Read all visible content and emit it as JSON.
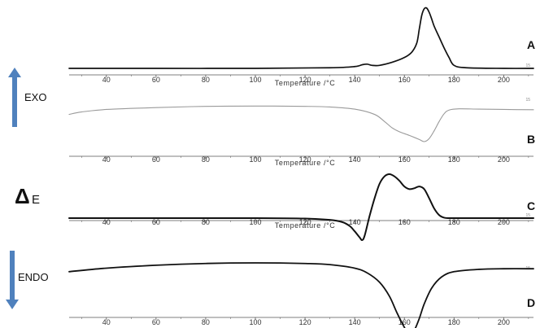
{
  "labels": {
    "exo": "EXO",
    "endo": "ENDO",
    "delta_symbol": "Δ",
    "delta_subscript": "E"
  },
  "colors": {
    "arrow": "#4f81bd",
    "curve_dark": "#111111",
    "curve_light": "#9a9a9a",
    "axis": "#555555"
  },
  "chart_data": [
    {
      "type": "line",
      "panel": "A",
      "xlabel": "Temperature /°C",
      "xlim": [
        25,
        212
      ],
      "x_ticks": [
        40,
        60,
        80,
        100,
        120,
        140,
        160,
        180,
        200
      ],
      "corner_mark": "15",
      "series": [
        {
          "x": [
            25,
            60,
            100,
            130,
            140,
            143,
            145,
            147,
            150,
            155,
            160,
            163,
            165,
            166,
            167,
            168,
            169,
            170,
            171,
            172,
            174,
            176,
            178,
            180,
            185,
            200,
            212
          ],
          "y": [
            0,
            0,
            0,
            0.01,
            0.03,
            0.06,
            0.07,
            0.05,
            0.05,
            0.1,
            0.18,
            0.27,
            0.42,
            0.65,
            0.88,
            0.99,
            1.0,
            0.93,
            0.82,
            0.7,
            0.52,
            0.34,
            0.18,
            0.05,
            0.01,
            0,
            0
          ]
        }
      ]
    },
    {
      "type": "line",
      "panel": "B",
      "xlabel": "Temperature /°C",
      "xlim": [
        25,
        212
      ],
      "x_ticks": [
        40,
        60,
        80,
        100,
        120,
        140,
        160,
        180,
        200
      ],
      "corner_mark": "15",
      "series": [
        {
          "x": [
            25,
            30,
            40,
            60,
            80,
            100,
            120,
            130,
            140,
            148,
            152,
            155,
            158,
            162,
            166,
            168,
            170,
            172,
            174,
            176,
            178,
            182,
            190,
            200,
            212
          ],
          "y": [
            -0.12,
            -0.04,
            0.04,
            0.1,
            0.14,
            0.15,
            0.14,
            0.12,
            0.05,
            -0.12,
            -0.35,
            -0.55,
            -0.68,
            -0.8,
            -0.93,
            -1.0,
            -0.9,
            -0.65,
            -0.35,
            -0.1,
            0.02,
            0.06,
            0.05,
            0.04,
            0.03
          ]
        }
      ]
    },
    {
      "type": "line",
      "panel": "C",
      "xlabel": "Temperature /°C",
      "xlim": [
        25,
        212
      ],
      "x_ticks": [
        40,
        60,
        80,
        100,
        120,
        140,
        160,
        180,
        200
      ],
      "corner_mark": "15",
      "series": [
        {
          "x": [
            25,
            60,
            100,
            120,
            130,
            135,
            138,
            140,
            142,
            143,
            144,
            146,
            148,
            150,
            152,
            154,
            156,
            158,
            160,
            162,
            164,
            166,
            168,
            170,
            172,
            174,
            176,
            178,
            180,
            190,
            200,
            212
          ],
          "y": [
            0,
            0,
            0,
            -0.01,
            -0.04,
            -0.09,
            -0.18,
            -0.3,
            -0.44,
            -0.5,
            -0.4,
            0.05,
            0.45,
            0.78,
            0.95,
            1.0,
            0.95,
            0.85,
            0.72,
            0.66,
            0.68,
            0.72,
            0.66,
            0.45,
            0.22,
            0.07,
            0.01,
            0,
            0,
            0,
            0,
            0
          ]
        }
      ]
    },
    {
      "type": "line",
      "panel": "D",
      "xlabel": "",
      "xlim": [
        25,
        212
      ],
      "x_ticks": [
        40,
        60,
        80,
        100,
        120,
        140,
        160,
        180,
        200
      ],
      "corner_mark": "15",
      "series": [
        {
          "x": [
            25,
            40,
            60,
            80,
            100,
            120,
            130,
            140,
            145,
            150,
            154,
            157,
            160,
            162,
            164,
            166,
            168,
            171,
            175,
            180,
            190,
            200,
            212
          ],
          "y": [
            0.1,
            0.16,
            0.21,
            0.24,
            0.25,
            0.24,
            0.22,
            0.16,
            0.08,
            -0.08,
            -0.32,
            -0.6,
            -0.85,
            -0.98,
            -0.9,
            -0.7,
            -0.45,
            -0.18,
            0.01,
            0.1,
            0.14,
            0.15,
            0.15
          ]
        }
      ]
    }
  ]
}
